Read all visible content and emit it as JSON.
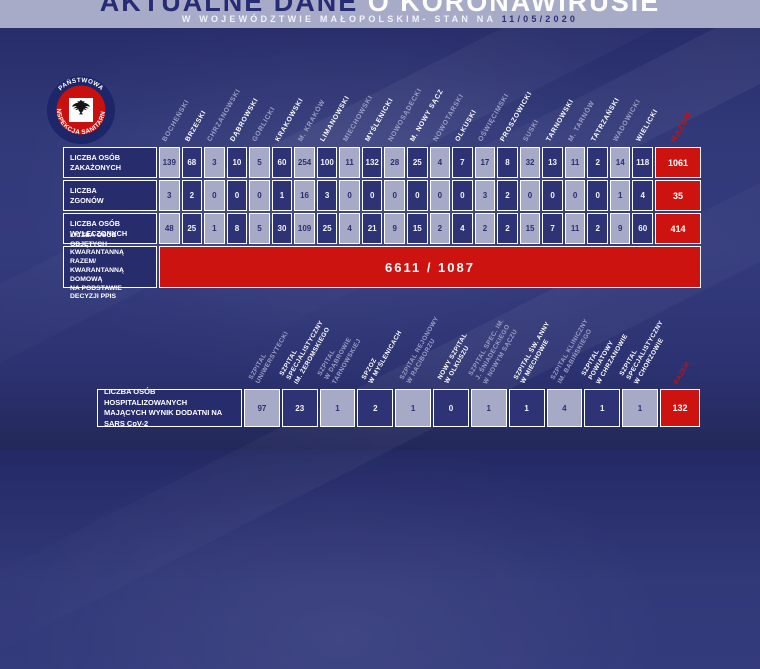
{
  "header": {
    "title_part1": "AKTUALNE DANE ",
    "title_part2": "O KORONAWIRUSIE",
    "subtitle": "W WOJEWÓDZTWIE MAŁOPOLSKIM- STAN NA ",
    "date": "11/05/2020"
  },
  "logo": {
    "top": "PAŃSTWOWA",
    "bottom": "INSPEKCJA SANITARNA"
  },
  "colors": {
    "accent_red": "#cd1310",
    "navy": "#2b2f72",
    "light_cell": "#a6aac7",
    "banner": "#a8abc8"
  },
  "districts": {
    "razem_label": "RAZEM",
    "columns": [
      "BOCHEŃSKI",
      "BRZESKI",
      "CHRZANOWSKI",
      "DĄBROWSKI",
      "GORLICKI",
      "KRAKOWSKI",
      "M. KRAKÓW",
      "LIMANOWSKI",
      "MIECHOWSKI",
      "MYŚLENICKI",
      "NOWOSĄDECKI",
      "M. NOWY SĄCZ",
      "NOWOTARSKI",
      "OLKUSKI",
      "OŚWIĘCIMSKI",
      "PROSZOWICKI",
      "SUSKI",
      "TARNOWSKI",
      "M. TARNÓW",
      "TATRZAŃSKI",
      "WADOWICKI",
      "WIELICKI"
    ],
    "rows": [
      {
        "label": "LICZBA OSÓB\nZAKAŻONYCH",
        "values": [
          139,
          68,
          3,
          10,
          5,
          60,
          254,
          100,
          11,
          132,
          28,
          25,
          4,
          7,
          17,
          8,
          32,
          13,
          11,
          2,
          14,
          118
        ],
        "total": "1061"
      },
      {
        "label": "LICZBA\nZGONÓW",
        "values": [
          3,
          2,
          0,
          0,
          0,
          1,
          16,
          3,
          0,
          0,
          0,
          0,
          0,
          0,
          3,
          2,
          0,
          0,
          0,
          0,
          1,
          4
        ],
        "total": "35"
      },
      {
        "label": "LICZBA OSÓB\nWYLECZONYCH",
        "values": [
          48,
          25,
          1,
          8,
          5,
          30,
          109,
          25,
          4,
          21,
          9,
          15,
          2,
          4,
          2,
          2,
          15,
          7,
          11,
          2,
          9,
          60
        ],
        "total": "414"
      }
    ],
    "quarantine": {
      "label": "LICZBA OSÓB OBJĘTYCH\nKWARANTANNĄ RAZEM/\nKWARANTANNĄ DOMOWĄ\nNA PODSTAWIE DECYZJI PPIS",
      "value": "6611 / 1087"
    }
  },
  "hospitals": {
    "razem_label": "RAZEM",
    "columns": [
      "SZPITAL\nUNIWERSYTECKI",
      "SZPITAL\nSPECJALISTYCZNY\nIM. ŻEROMSKIEGO",
      "SZPITAL\nW DĄBROWIE\nTARNOWSKIEJ",
      "SPZOZ\nW MYŚLENICACH",
      "SZPITAL REJONOWY\nW RACIBORZU",
      "NOWY SZPITAL\nW OLKUSZU",
      "SZPITAL SPEC. IM.\nJ. ŚNIADECKIEGO\nW NOWYM SĄCZU",
      "SZPITAL ŚW. ANNY\nW MIECHOWIE",
      "SZPITAL KLINICZNY\nIM. BABIŃSKIEGO",
      "SZPITAL\nPOWIATOWY\nW CHRZANOWIE",
      "SZPITAL\nSPECJALISTYCZNY\nW CHORZOWIE"
    ],
    "row": {
      "label": "LICZBA OSÓB HOSPITALIZOWANYCH\nMAJĄCYCH WYNIK DODATNI NA SARS CoV-2",
      "values": [
        97,
        23,
        1,
        2,
        1,
        0,
        1,
        1,
        4,
        1,
        1
      ],
      "total": "132"
    }
  }
}
